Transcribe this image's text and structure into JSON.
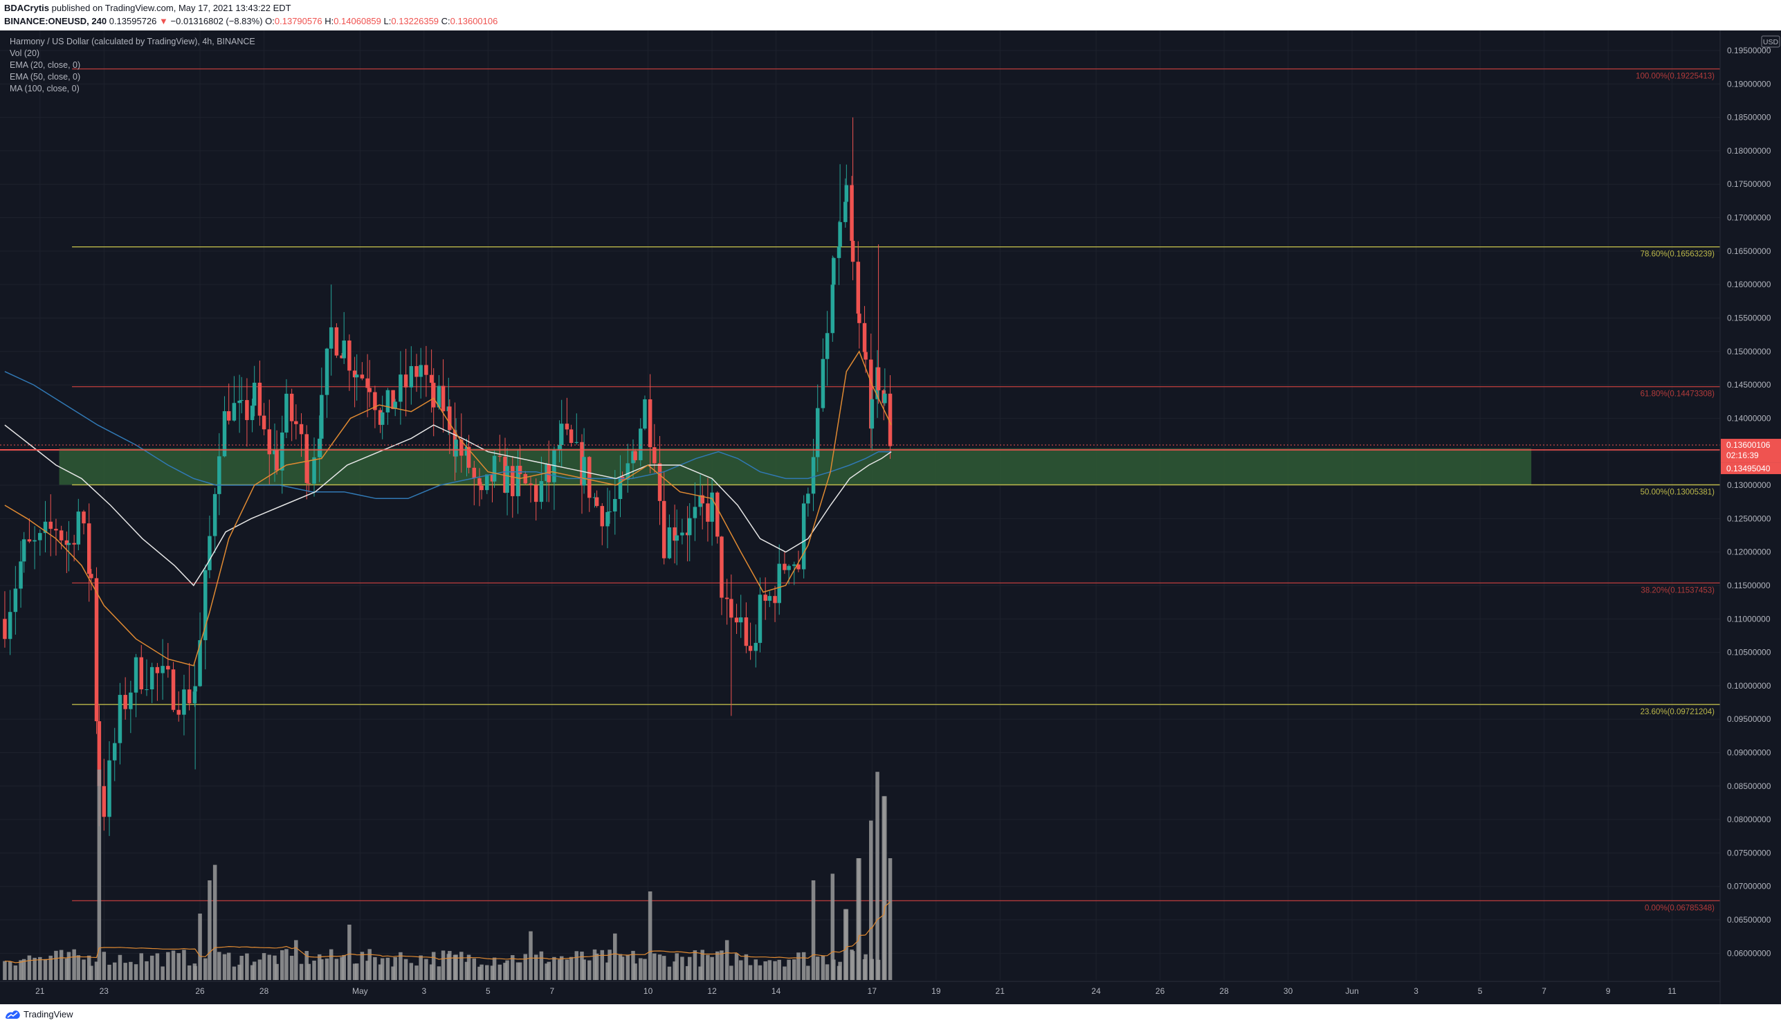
{
  "header": {
    "author": "BDACrytis",
    "published_text": "published on TradingView.com, May 17, 2021 13:43:22 EDT",
    "symbol": "BINANCE:ONEUSD, 240",
    "last": "0.13595726",
    "change": "−0.01316802 (−8.83%)",
    "ohlc_o_label": "O:",
    "ohlc_o": "0.13790576",
    "ohlc_h_label": "H:",
    "ohlc_h": "0.14060859",
    "ohlc_l_label": "L:",
    "ohlc_l": "0.13226359",
    "ohlc_c_label": "C:",
    "ohlc_c": "0.13600106"
  },
  "legend": {
    "title": "Harmony / US Dollar (calculated by TradingView), 4h, BINANCE",
    "items": [
      "Vol (20)",
      "EMA (20, close, 0)",
      "EMA (50, close, 0)",
      "MA (100, close, 0)"
    ]
  },
  "footer": {
    "brand": "TradingView"
  },
  "colors": {
    "bg": "#131722",
    "grid": "#1e222d",
    "up": "#26a69a",
    "down": "#ef5350",
    "fib_red": "#b23b3b",
    "fib_yellow": "#bcb84a",
    "zone": "#2f5a35",
    "ema20": "#e08a32",
    "ema50": "#3179b5",
    "ma100": "#e6e6e6",
    "vol": "#9a9a9a"
  },
  "chart_data": {
    "type": "candlestick",
    "currency": "USD",
    "ylim": [
      0.056,
      0.198
    ],
    "y_ticks": [
      "0.06000000",
      "0.06500000",
      "0.07000000",
      "0.07500000",
      "0.08000000",
      "0.08500000",
      "0.09000000",
      "0.09500000",
      "0.10000000",
      "0.10500000",
      "0.11000000",
      "0.11500000",
      "0.12000000",
      "0.12500000",
      "0.13000000",
      "0.13500000",
      "0.14000000",
      "0.14500000",
      "0.15000000",
      "0.15500000",
      "0.16000000",
      "0.16500000",
      "0.17000000",
      "0.17500000",
      "0.18000000",
      "0.18500000",
      "0.19000000",
      "0.19500000"
    ],
    "x_ticks": [
      {
        "label": "21",
        "day": 21
      },
      {
        "label": "23",
        "day": 23
      },
      {
        "label": "26",
        "day": 26
      },
      {
        "label": "28",
        "day": 28
      },
      {
        "label": "May",
        "day": 31
      },
      {
        "label": "3",
        "day": 33
      },
      {
        "label": "5",
        "day": 35
      },
      {
        "label": "7",
        "day": 37
      },
      {
        "label": "10",
        "day": 40
      },
      {
        "label": "12",
        "day": 42
      },
      {
        "label": "14",
        "day": 44
      },
      {
        "label": "17",
        "day": 47
      },
      {
        "label": "19",
        "day": 49
      },
      {
        "label": "21",
        "day": 51
      },
      {
        "label": "24",
        "day": 54
      },
      {
        "label": "26",
        "day": 56
      },
      {
        "label": "28",
        "day": 58
      },
      {
        "label": "30",
        "day": 60
      },
      {
        "label": "Jun",
        "day": 62
      },
      {
        "label": "3",
        "day": 64
      },
      {
        "label": "5",
        "day": 66
      },
      {
        "label": "7",
        "day": 68
      },
      {
        "label": "9",
        "day": 70
      },
      {
        "label": "11",
        "day": 72
      }
    ],
    "fib_levels": [
      {
        "label": "100.00%(0.19225413)",
        "value": 0.19225413,
        "color": "red"
      },
      {
        "label": "78.60%(0.16563239)",
        "value": 0.16563239,
        "color": "yellow"
      },
      {
        "label": "61.80%(0.14473308)",
        "value": 0.14473308,
        "color": "red"
      },
      {
        "label": "50.00%(0.13005381)",
        "value": 0.13005381,
        "color": "yellow"
      },
      {
        "label": "38.20%(0.11537453)",
        "value": 0.11537453,
        "color": "red"
      },
      {
        "label": "23.60%(0.09721204)",
        "value": 0.09721204,
        "color": "yellow"
      },
      {
        "label": "0.00%(0.06785348)",
        "value": 0.06785348,
        "color": "red"
      }
    ],
    "zone": {
      "top": 0.1355,
      "bottom": 0.13005381,
      "start_day": 21.6,
      "end_day": 67.6
    },
    "price_line": 0.136,
    "price_label": "0.13600106",
    "countdown_label": "02:16:39",
    "ma_label": "0.13495040",
    "candles_anchor": [
      [
        19.9,
        0.11
      ],
      [
        20.5,
        0.12
      ],
      [
        21.0,
        0.121
      ],
      [
        21.5,
        0.124
      ],
      [
        21.9,
        0.121
      ],
      [
        22.2,
        0.126
      ],
      [
        22.6,
        0.116
      ],
      [
        22.85,
        0.086
      ],
      [
        23.0,
        0.082
      ],
      [
        23.5,
        0.096
      ],
      [
        24.0,
        0.102
      ],
      [
        24.5,
        0.102
      ],
      [
        25.0,
        0.1
      ],
      [
        25.5,
        0.098
      ],
      [
        25.85,
        0.1
      ],
      [
        26.0,
        0.106
      ],
      [
        26.3,
        0.122
      ],
      [
        26.6,
        0.137
      ],
      [
        26.9,
        0.142
      ],
      [
        27.3,
        0.14
      ],
      [
        27.7,
        0.143
      ],
      [
        28.0,
        0.137
      ],
      [
        28.4,
        0.134
      ],
      [
        28.7,
        0.141
      ],
      [
        29.0,
        0.139
      ],
      [
        29.4,
        0.132
      ],
      [
        29.8,
        0.141
      ],
      [
        30.1,
        0.153
      ],
      [
        30.5,
        0.151
      ],
      [
        30.9,
        0.147
      ],
      [
        31.3,
        0.146
      ],
      [
        31.7,
        0.14
      ],
      [
        32.1,
        0.143
      ],
      [
        32.6,
        0.146
      ],
      [
        32.9,
        0.148
      ],
      [
        33.3,
        0.142
      ],
      [
        33.6,
        0.142
      ],
      [
        33.8,
        0.14
      ],
      [
        34.0,
        0.136
      ],
      [
        34.4,
        0.133
      ],
      [
        34.8,
        0.127
      ],
      [
        35.2,
        0.132
      ],
      [
        35.6,
        0.131
      ],
      [
        36.0,
        0.13
      ],
      [
        36.5,
        0.129
      ],
      [
        36.9,
        0.131
      ],
      [
        37.3,
        0.137
      ],
      [
        37.6,
        0.135
      ],
      [
        38.0,
        0.132
      ],
      [
        38.4,
        0.127
      ],
      [
        38.8,
        0.126
      ],
      [
        39.2,
        0.129
      ],
      [
        39.6,
        0.136
      ],
      [
        39.9,
        0.142
      ],
      [
        40.2,
        0.136
      ],
      [
        40.5,
        0.122
      ],
      [
        40.9,
        0.124
      ],
      [
        41.3,
        0.124
      ],
      [
        41.7,
        0.126
      ],
      [
        42.0,
        0.127
      ],
      [
        42.3,
        0.115
      ],
      [
        42.6,
        0.108
      ],
      [
        42.9,
        0.11
      ],
      [
        43.2,
        0.104
      ],
      [
        43.5,
        0.111
      ],
      [
        43.8,
        0.113
      ],
      [
        44.1,
        0.116
      ],
      [
        44.4,
        0.12
      ],
      [
        44.7,
        0.118
      ],
      [
        45.0,
        0.131
      ],
      [
        45.3,
        0.14
      ],
      [
        45.6,
        0.152
      ],
      [
        45.8,
        0.161
      ],
      [
        46.0,
        0.168
      ],
      [
        46.2,
        0.173
      ],
      [
        46.4,
        0.162
      ],
      [
        46.6,
        0.153
      ],
      [
        46.8,
        0.148
      ],
      [
        47.0,
        0.14
      ],
      [
        47.2,
        0.146
      ],
      [
        47.4,
        0.142
      ],
      [
        47.6,
        0.136
      ]
    ],
    "ema20_path": [
      [
        19.9,
        0.127
      ],
      [
        20.6,
        0.125
      ],
      [
        21.5,
        0.122
      ],
      [
        22.3,
        0.118
      ],
      [
        23.0,
        0.112
      ],
      [
        24.0,
        0.107
      ],
      [
        25.0,
        0.104
      ],
      [
        25.8,
        0.103
      ],
      [
        26.3,
        0.111
      ],
      [
        26.9,
        0.122
      ],
      [
        27.7,
        0.13
      ],
      [
        28.7,
        0.133
      ],
      [
        29.8,
        0.134
      ],
      [
        30.7,
        0.14
      ],
      [
        31.6,
        0.142
      ],
      [
        32.6,
        0.141
      ],
      [
        33.3,
        0.143
      ],
      [
        34.1,
        0.137
      ],
      [
        35.0,
        0.132
      ],
      [
        36.0,
        0.131
      ],
      [
        37.0,
        0.132
      ],
      [
        38.0,
        0.131
      ],
      [
        39.0,
        0.13
      ],
      [
        40.0,
        0.133
      ],
      [
        41.0,
        0.129
      ],
      [
        42.0,
        0.128
      ],
      [
        42.9,
        0.12
      ],
      [
        43.6,
        0.114
      ],
      [
        44.3,
        0.115
      ],
      [
        45.0,
        0.121
      ],
      [
        45.7,
        0.132
      ],
      [
        46.2,
        0.147
      ],
      [
        46.6,
        0.15
      ],
      [
        47.0,
        0.145
      ],
      [
        47.4,
        0.141
      ],
      [
        47.6,
        0.139
      ]
    ],
    "ema50_path": [
      [
        19.9,
        0.147
      ],
      [
        20.8,
        0.145
      ],
      [
        21.8,
        0.142
      ],
      [
        22.8,
        0.139
      ],
      [
        24.0,
        0.136
      ],
      [
        25.0,
        0.133
      ],
      [
        25.8,
        0.131
      ],
      [
        26.5,
        0.13
      ],
      [
        27.5,
        0.13
      ],
      [
        28.5,
        0.13
      ],
      [
        29.5,
        0.129
      ],
      [
        30.5,
        0.129
      ],
      [
        31.5,
        0.128
      ],
      [
        32.5,
        0.128
      ],
      [
        33.5,
        0.13
      ],
      [
        34.5,
        0.131
      ],
      [
        35.5,
        0.132
      ],
      [
        36.5,
        0.132
      ],
      [
        37.5,
        0.131
      ],
      [
        38.5,
        0.131
      ],
      [
        39.5,
        0.131
      ],
      [
        40.5,
        0.132
      ],
      [
        41.5,
        0.134
      ],
      [
        42.2,
        0.135
      ],
      [
        42.8,
        0.134
      ],
      [
        43.5,
        0.132
      ],
      [
        44.3,
        0.131
      ],
      [
        45.0,
        0.131
      ],
      [
        45.7,
        0.132
      ],
      [
        46.3,
        0.133
      ],
      [
        46.8,
        0.134
      ],
      [
        47.2,
        0.135
      ],
      [
        47.6,
        0.135
      ]
    ],
    "ma100_path": [
      [
        19.9,
        0.139
      ],
      [
        20.7,
        0.136
      ],
      [
        21.5,
        0.133
      ],
      [
        22.3,
        0.131
      ],
      [
        23.2,
        0.127
      ],
      [
        24.2,
        0.122
      ],
      [
        25.2,
        0.118
      ],
      [
        25.8,
        0.115
      ],
      [
        26.2,
        0.118
      ],
      [
        26.8,
        0.123
      ],
      [
        27.6,
        0.125
      ],
      [
        28.6,
        0.127
      ],
      [
        29.6,
        0.129
      ],
      [
        30.6,
        0.133
      ],
      [
        31.6,
        0.135
      ],
      [
        32.6,
        0.137
      ],
      [
        33.3,
        0.139
      ],
      [
        34.2,
        0.137
      ],
      [
        35.0,
        0.135
      ],
      [
        36.0,
        0.134
      ],
      [
        37.0,
        0.133
      ],
      [
        38.0,
        0.132
      ],
      [
        39.0,
        0.131
      ],
      [
        40.0,
        0.133
      ],
      [
        41.0,
        0.133
      ],
      [
        42.0,
        0.131
      ],
      [
        42.8,
        0.127
      ],
      [
        43.5,
        0.122
      ],
      [
        44.3,
        0.12
      ],
      [
        45.0,
        0.122
      ],
      [
        45.7,
        0.127
      ],
      [
        46.3,
        0.131
      ],
      [
        46.9,
        0.133
      ],
      [
        47.3,
        0.134
      ],
      [
        47.6,
        0.135
      ]
    ],
    "volume_spikes": [
      [
        22.9,
        0.95
      ],
      [
        26.0,
        0.3
      ],
      [
        26.3,
        0.45
      ],
      [
        26.5,
        0.52
      ],
      [
        29.0,
        0.18
      ],
      [
        30.7,
        0.25
      ],
      [
        36.3,
        0.22
      ],
      [
        39.0,
        0.21
      ],
      [
        40.1,
        0.4
      ],
      [
        42.4,
        0.18
      ],
      [
        45.2,
        0.45
      ],
      [
        45.7,
        0.48
      ],
      [
        46.2,
        0.32
      ],
      [
        46.6,
        0.55
      ],
      [
        46.9,
        0.72
      ],
      [
        47.1,
        0.94
      ],
      [
        47.4,
        0.83
      ],
      [
        47.6,
        0.55
      ]
    ]
  }
}
